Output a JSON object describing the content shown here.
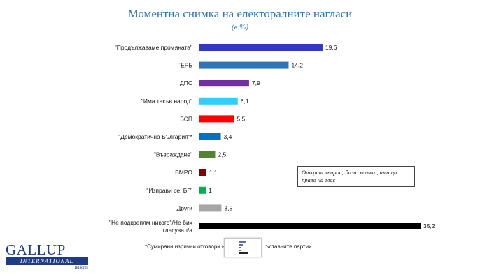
{
  "chart_data": {
    "type": "bar",
    "orientation": "horizontal",
    "title": "Моментна снимка на електоралните нагласи",
    "subtitle": "(в %)",
    "categories": [
      "\"Продължаваме промяната\"",
      "ГЕРБ",
      "ДПС",
      "\"Има такъв народ\"",
      "БСП",
      "\"Демократична България\"*",
      "\"Възраждане\"",
      "ВМРО",
      "\"Изправи се. БГ\"",
      "Други",
      "\"Не подкрепям никого\"/Не бих гласувал/а"
    ],
    "values": [
      19.6,
      14.2,
      7.9,
      6.1,
      5.5,
      3.4,
      2.5,
      1.1,
      1,
      3.5,
      35.2
    ],
    "value_labels": [
      "19,6",
      "14,2",
      "7,9",
      "6,1",
      "5,5",
      "3,4",
      "2,5",
      "1,1",
      "1",
      "3,5",
      "35,2"
    ],
    "colors": [
      "#3436c4",
      "#2e75b6",
      "#7030a0",
      "#33ccff",
      "#ff0000",
      "#0070c0",
      "#548235",
      "#7f0000",
      "#00b050",
      "#a6a6a6",
      "#000000"
    ],
    "xlim": [
      0,
      35.2
    ],
    "grid": false,
    "legend": "none"
  },
  "note": "Открит въпрос; база: всички, имащи право на глас",
  "footnote": "*Сумирани изрични отговори и",
  "footnote_end": "ъставните партии",
  "logo": {
    "name": "GALLUP",
    "tagline": "INTERNATIONAL",
    "sub": "Balkans"
  }
}
